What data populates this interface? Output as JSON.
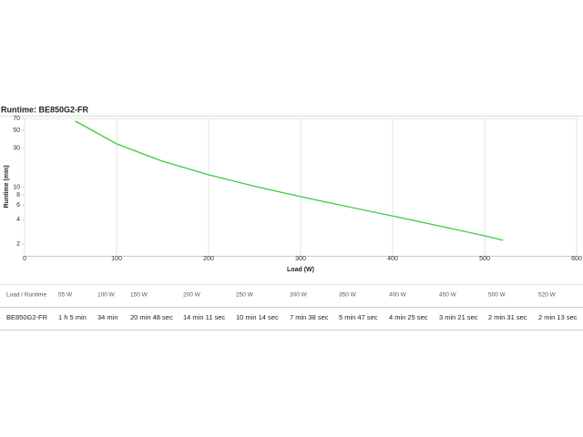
{
  "chart_data": {
    "type": "line",
    "title": "Runtime: BE850G2-FR",
    "x_label": "Load (W)",
    "y_label": "Runtime (min)",
    "x": [
      55,
      100,
      150,
      200,
      250,
      300,
      350,
      400,
      450,
      500,
      520
    ],
    "values": [
      65,
      34,
      20.8,
      14.18,
      10.23,
      7.63,
      5.78,
      4.42,
      3.35,
      2.52,
      2.22
    ],
    "color": "#3ccc3c",
    "xlim": [
      0,
      600
    ],
    "xticks": [
      0,
      100,
      200,
      300,
      400,
      500,
      600
    ],
    "ylim": [
      1.43,
      70
    ],
    "yticks": [
      2,
      4,
      6,
      8,
      10,
      30,
      50,
      70
    ],
    "y_scale": "log",
    "grid": "x"
  },
  "table": {
    "header": [
      "Load / Runtime",
      "55 W",
      "100 W",
      "150 W",
      "200 W",
      "250 W",
      "300 W",
      "350 W",
      "400 W",
      "450 W",
      "500 W",
      "520 W"
    ],
    "rows": [
      [
        "BE850G2-FR",
        "1 h 5 min",
        "34 min",
        "20 min 48 sec",
        "14 min 11 sec",
        "10 min 14 sec",
        "7 min 38 sec",
        "5 min 47 sec",
        "4 min 25 sec",
        "3 min 21 sec",
        "2 min 31 sec",
        "2 min 13 sec"
      ]
    ]
  }
}
